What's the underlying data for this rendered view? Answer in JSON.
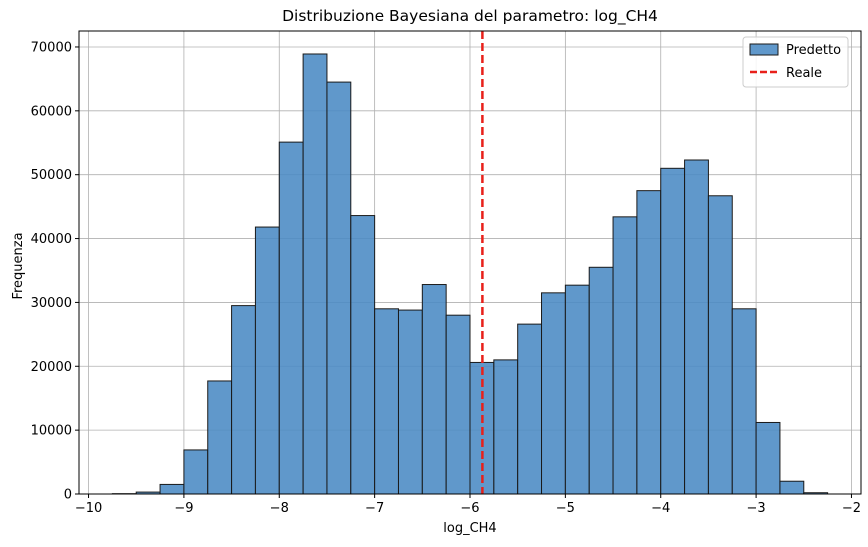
{
  "chart_data": {
    "type": "bar",
    "title": "Distribuzione Bayesiana del parametro: log_CH4",
    "xlabel": "log_CH4",
    "ylabel": "Frequenza",
    "xlim": [
      -10.1,
      -1.9
    ],
    "ylim": [
      0,
      72500
    ],
    "xticks": [
      -10,
      -9,
      -8,
      -7,
      -6,
      -5,
      -4,
      -3,
      -2
    ],
    "yticks": [
      0,
      10000,
      20000,
      30000,
      40000,
      50000,
      60000,
      70000
    ],
    "grid": true,
    "legend_position": "top-right",
    "bar_color": "#4a8ac4",
    "bar_edge_color": "#1a1a1a",
    "reference_line_color": "#e8201a",
    "series": [
      {
        "name": "Predetto",
        "bin_edges": [
          -9.75,
          -9.5,
          -9.25,
          -9.0,
          -8.75,
          -8.5,
          -8.25,
          -8.0,
          -7.75,
          -7.5,
          -7.25,
          -7.0,
          -6.75,
          -6.5,
          -6.25,
          -6.0,
          -5.75,
          -5.5,
          -5.25,
          -5.0,
          -4.75,
          -4.5,
          -4.25,
          -4.0,
          -3.75,
          -3.5,
          -3.25,
          -3.0,
          -2.75,
          -2.5,
          -2.25
        ],
        "values": [
          50,
          300,
          1500,
          6900,
          17700,
          29500,
          41800,
          55100,
          68900,
          64500,
          43600,
          29000,
          28800,
          32800,
          28000,
          20600,
          21000,
          26600,
          31500,
          32700,
          35500,
          43400,
          47500,
          51000,
          52300,
          46700,
          29000,
          11200,
          2000,
          200
        ]
      }
    ],
    "reference_line": {
      "name": "Reale",
      "x": -5.87
    }
  }
}
